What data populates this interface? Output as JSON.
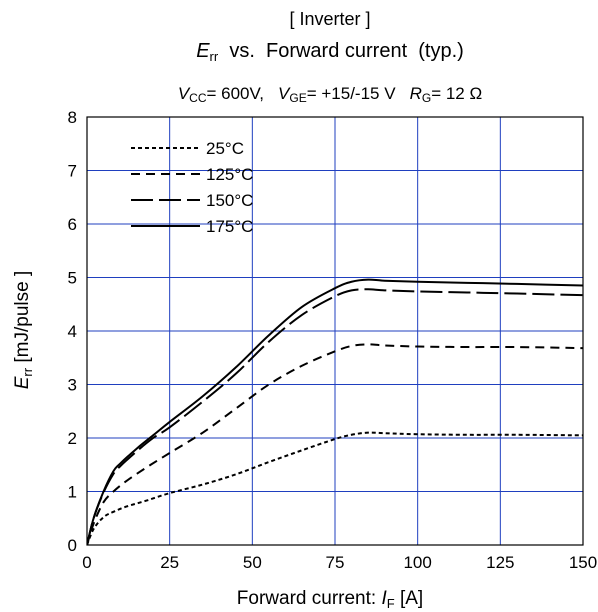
{
  "chart_data": {
    "type": "line",
    "title": "[ Inverter ]",
    "subtitle": {
      "main_symbol": "E",
      "main_sub": "rr",
      "main_rest": "  vs.  Forward current  (typ.)"
    },
    "conditions": [
      {
        "symbol": "V",
        "sub": "CC",
        "text": "= 600V,"
      },
      {
        "symbol": "V",
        "sub": "GE",
        "text": "= +15/-15 V"
      },
      {
        "symbol": "R",
        "sub": "G",
        "text": "= 12 Ω"
      }
    ],
    "xlabel": {
      "text": "Forward current: ",
      "symbol": "I",
      "sub": "F",
      "unit": " [A]"
    },
    "ylabel": {
      "symbol": "E",
      "sub": "rr",
      "unit": " [mJ/pulse ]"
    },
    "xlim": [
      0,
      150
    ],
    "ylim": [
      0,
      8
    ],
    "xticks": [
      "0",
      "25",
      "50",
      "75",
      "100",
      "125",
      "150"
    ],
    "yticks": [
      "0",
      "1",
      "2",
      "3",
      "4",
      "5",
      "6",
      "7",
      "8"
    ],
    "grid": true,
    "grid_color": "#1f3fbf",
    "legend_position": "top-left",
    "series": [
      {
        "name": "25°C",
        "dash": "4,3",
        "points": [
          [
            0,
            0
          ],
          [
            2,
            0.3
          ],
          [
            5,
            0.52
          ],
          [
            8,
            0.62
          ],
          [
            12,
            0.72
          ],
          [
            18,
            0.83
          ],
          [
            25,
            0.97
          ],
          [
            35,
            1.13
          ],
          [
            45,
            1.32
          ],
          [
            55,
            1.55
          ],
          [
            65,
            1.77
          ],
          [
            75,
            1.98
          ],
          [
            80,
            2.06
          ],
          [
            85,
            2.1
          ],
          [
            90,
            2.09
          ],
          [
            100,
            2.07
          ],
          [
            115,
            2.06
          ],
          [
            130,
            2.06
          ],
          [
            150,
            2.05
          ]
        ]
      },
      {
        "name": "125°C",
        "dash": "9,6",
        "points": [
          [
            0,
            0
          ],
          [
            2,
            0.4
          ],
          [
            5,
            0.8
          ],
          [
            8,
            1.0
          ],
          [
            12,
            1.2
          ],
          [
            18,
            1.45
          ],
          [
            25,
            1.72
          ],
          [
            35,
            2.1
          ],
          [
            45,
            2.55
          ],
          [
            55,
            3.0
          ],
          [
            65,
            3.35
          ],
          [
            75,
            3.62
          ],
          [
            80,
            3.72
          ],
          [
            85,
            3.75
          ],
          [
            90,
            3.73
          ],
          [
            100,
            3.71
          ],
          [
            115,
            3.7
          ],
          [
            130,
            3.7
          ],
          [
            150,
            3.68
          ]
        ]
      },
      {
        "name": "150°C",
        "dash": "22,6",
        "points": [
          [
            0,
            0
          ],
          [
            2,
            0.5
          ],
          [
            5,
            0.98
          ],
          [
            8,
            1.33
          ],
          [
            10,
            1.47
          ],
          [
            15,
            1.75
          ],
          [
            20,
            2.0
          ],
          [
            25,
            2.2
          ],
          [
            35,
            2.68
          ],
          [
            45,
            3.2
          ],
          [
            55,
            3.8
          ],
          [
            65,
            4.3
          ],
          [
            75,
            4.65
          ],
          [
            80,
            4.76
          ],
          [
            85,
            4.78
          ],
          [
            90,
            4.76
          ],
          [
            100,
            4.74
          ],
          [
            115,
            4.72
          ],
          [
            130,
            4.7
          ],
          [
            150,
            4.67
          ]
        ]
      },
      {
        "name": "175°C",
        "dash": "",
        "points": [
          [
            0,
            0
          ],
          [
            2,
            0.5
          ],
          [
            5,
            1.0
          ],
          [
            8,
            1.38
          ],
          [
            10,
            1.52
          ],
          [
            15,
            1.8
          ],
          [
            20,
            2.05
          ],
          [
            25,
            2.3
          ],
          [
            35,
            2.78
          ],
          [
            45,
            3.32
          ],
          [
            55,
            3.92
          ],
          [
            65,
            4.45
          ],
          [
            75,
            4.8
          ],
          [
            80,
            4.92
          ],
          [
            85,
            4.96
          ],
          [
            90,
            4.94
          ],
          [
            100,
            4.92
          ],
          [
            115,
            4.9
          ],
          [
            130,
            4.88
          ],
          [
            150,
            4.85
          ]
        ]
      }
    ]
  }
}
